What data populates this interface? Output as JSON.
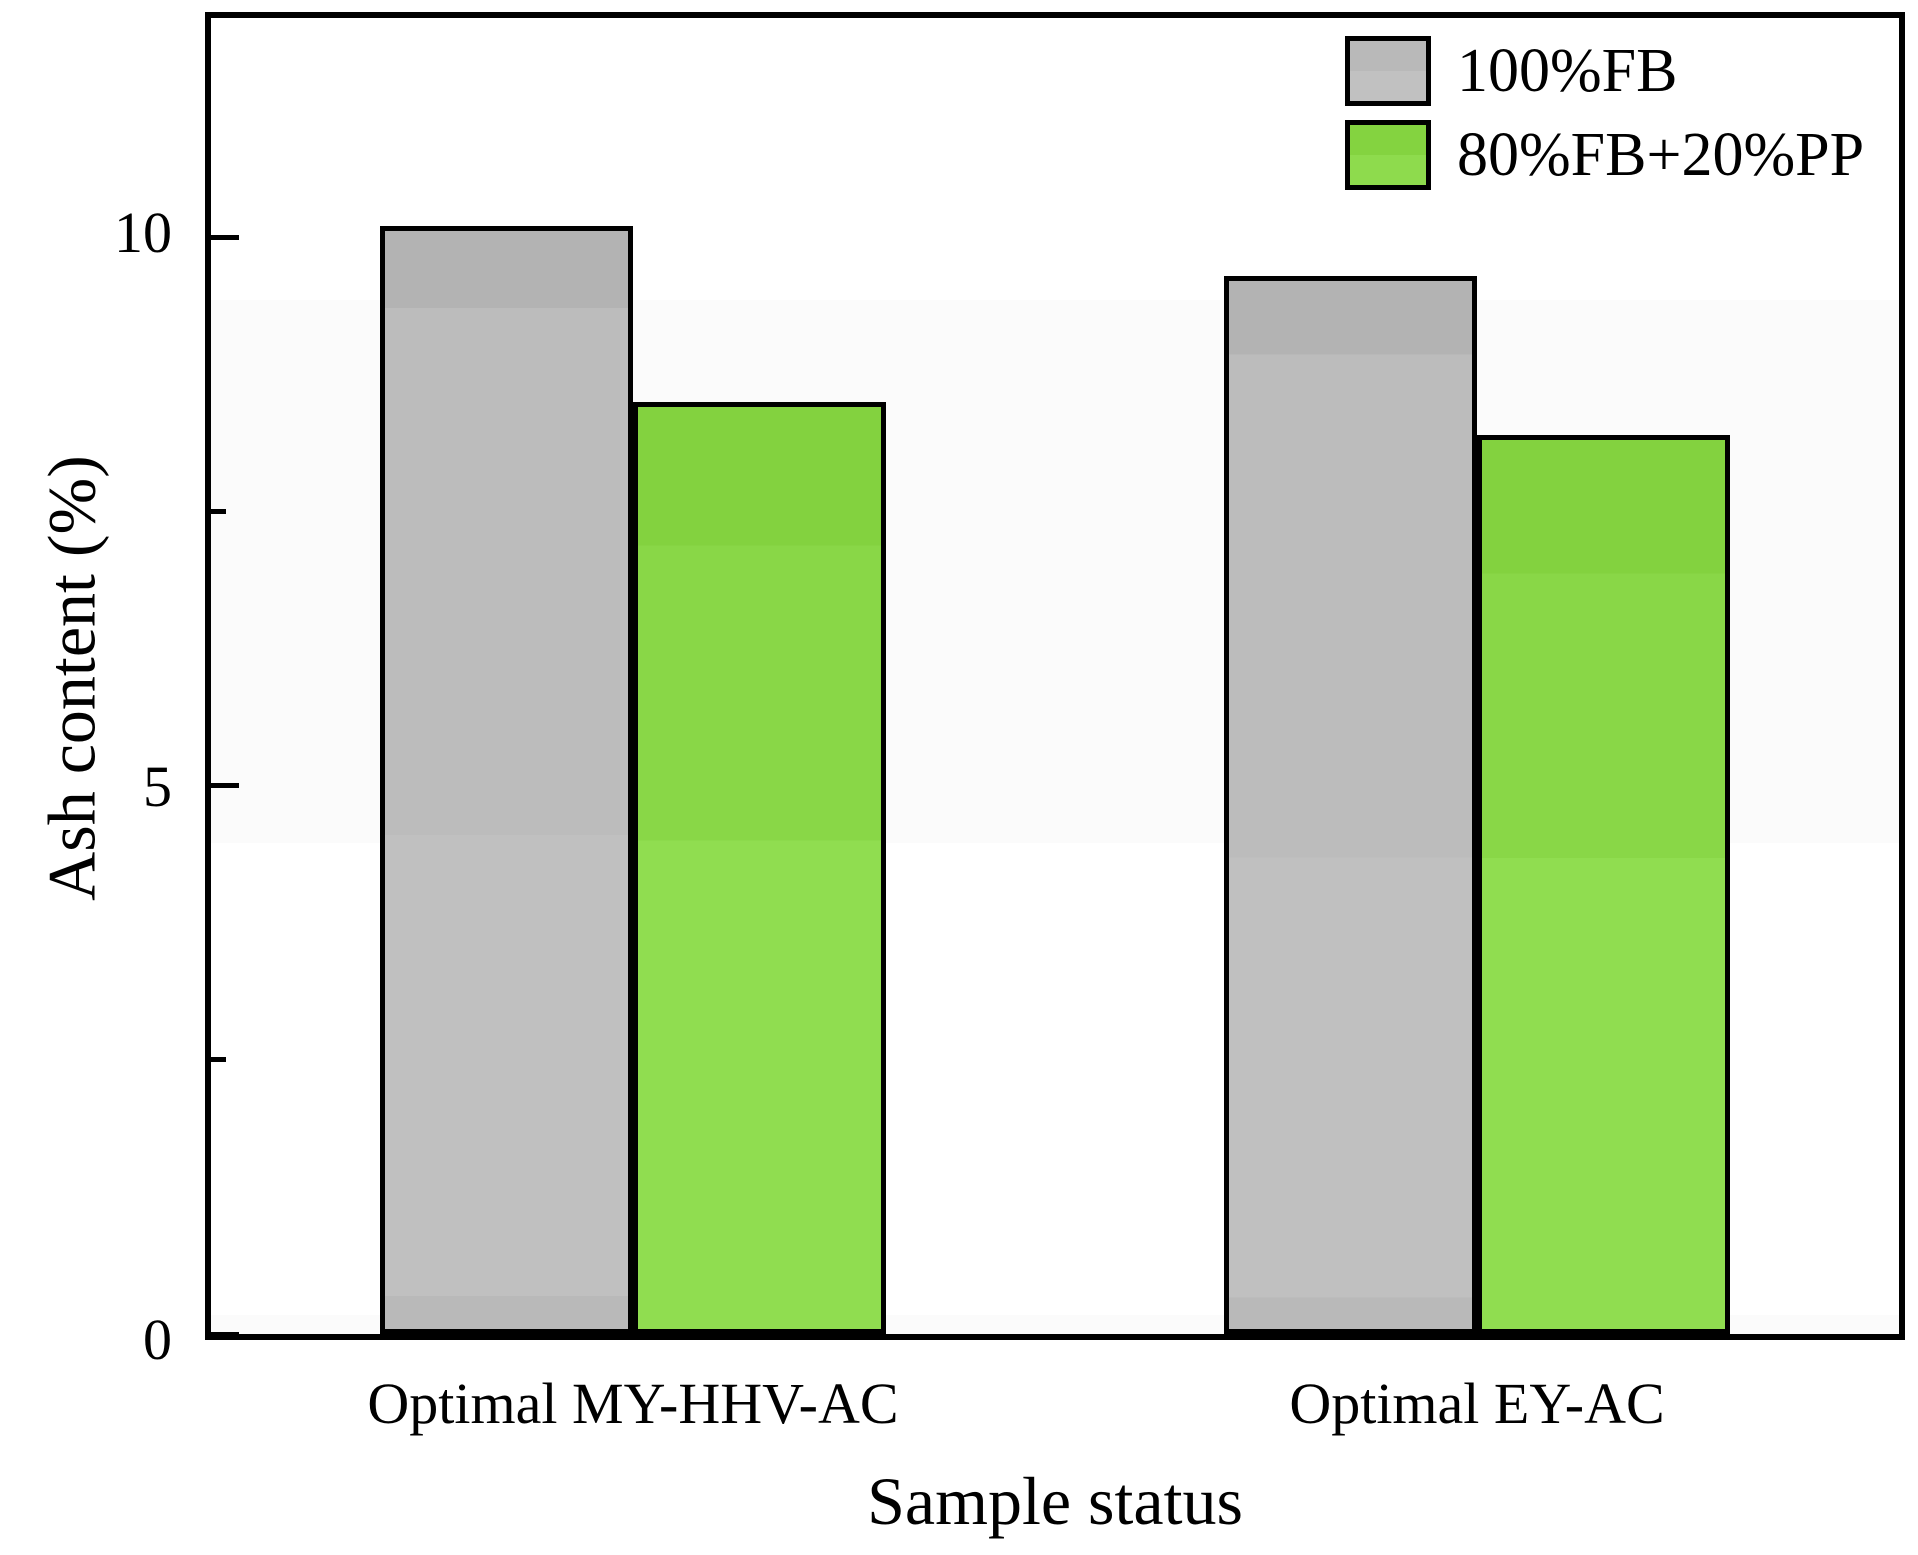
{
  "chart_data": {
    "type": "bar",
    "title": "",
    "xlabel": "Sample status",
    "ylabel": "Ash content (%)",
    "categories": [
      "Optimal MY-HHV-AC",
      "Optimal EY-AC"
    ],
    "series": [
      {
        "name": "100%FB",
        "color": "#bcbcbc",
        "values": [
          10.1,
          9.65
        ]
      },
      {
        "name": "80%FB+20%PP",
        "color": "#8cd94a",
        "values": [
          8.5,
          8.2
        ]
      }
    ],
    "ylim": [
      0,
      12
    ],
    "yticks_major": [
      0,
      5,
      10
    ],
    "ytick_labels": [
      "0",
      "5",
      "10"
    ],
    "yticks_minor": [
      2.5,
      7.5
    ],
    "grid": false,
    "legend_position": "top-right",
    "bar_edge_color": "#000000",
    "frame_color": "#000000"
  }
}
